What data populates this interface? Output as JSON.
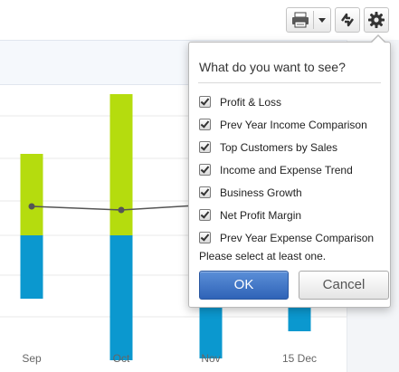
{
  "toolbar": {
    "print_icon": "printer-icon",
    "dropdown_icon": "caret-down-icon",
    "refresh_icon": "refresh-arrows-icon",
    "settings_icon": "gear-icon"
  },
  "popover": {
    "title": "What do you want to see?",
    "options": [
      {
        "label": "Profit & Loss",
        "checked": true
      },
      {
        "label": "Prev Year Income Comparison",
        "checked": true
      },
      {
        "label": "Top Customers by Sales",
        "checked": true
      },
      {
        "label": "Income and Expense Trend",
        "checked": true
      },
      {
        "label": "Business Growth",
        "checked": true
      },
      {
        "label": "Net Profit Margin",
        "checked": true
      },
      {
        "label": "Prev Year Expense Comparison",
        "checked": true
      }
    ],
    "note": "Please select at least one.",
    "ok_label": "OK",
    "cancel_label": "Cancel"
  },
  "chart_data": {
    "type": "bar",
    "categories": [
      "Sep",
      "Oct",
      "Nov",
      "15 Dec"
    ],
    "series": [
      {
        "values": [
          4.5,
          7.8,
          null,
          null
        ],
        "color": "#b5dc0e"
      },
      {
        "values": [
          -3.5,
          -6.9,
          -6.8,
          -5.3
        ],
        "color": "#0b98cf"
      },
      {
        "values": [
          1.6,
          1.4,
          1.7,
          1.9
        ],
        "color": "#555555",
        "kind": "line"
      }
    ]
  }
}
